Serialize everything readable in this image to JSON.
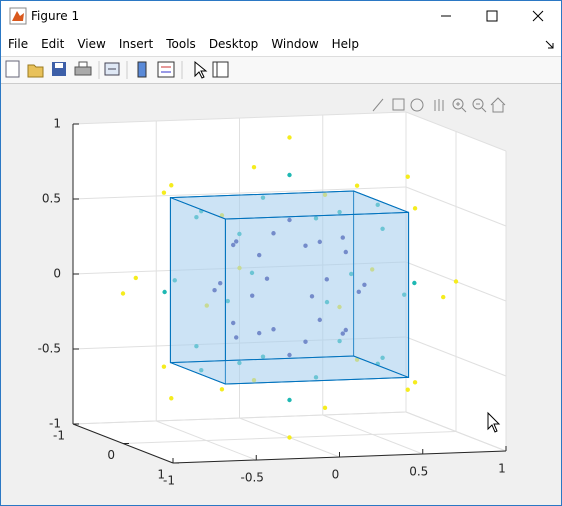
{
  "window": {
    "title": "Figure 1"
  },
  "menu": [
    "File",
    "Edit",
    "View",
    "Insert",
    "Tools",
    "Desktop",
    "Window",
    "Help"
  ],
  "chart_data": {
    "type": "scatter3",
    "xlim": [
      -1,
      1
    ],
    "ylim": [
      -1,
      1
    ],
    "zlim": [
      -1,
      1
    ],
    "xticks": [
      -1,
      -0.5,
      0,
      0.5,
      1
    ],
    "yticks": [
      -1,
      0,
      1
    ],
    "zticks": [
      -1,
      -0.5,
      0,
      0.5,
      1
    ],
    "grid": true,
    "series": [
      {
        "color": "#f5ec1e",
        "x": [
          1,
          -1,
          0,
          0,
          0,
          0,
          0.71,
          0.71,
          -0.71,
          -0.71,
          0.71,
          0.71,
          -0.71,
          -0.71,
          0,
          0,
          0,
          0,
          0.58,
          0.58,
          0.58,
          0.58,
          -0.58,
          -0.58,
          -0.58,
          -0.58
        ],
        "y": [
          0,
          0,
          1,
          -1,
          0,
          0,
          0.71,
          -0.71,
          0.71,
          -0.71,
          0,
          0,
          0,
          0,
          0.71,
          0.71,
          -0.71,
          -0.71,
          0.58,
          0.58,
          -0.58,
          -0.58,
          0.58,
          0.58,
          -0.58,
          -0.58
        ],
        "z": [
          0,
          0,
          0,
          0,
          1,
          -1,
          0,
          0,
          0,
          0,
          0.71,
          -0.71,
          0.71,
          -0.71,
          0.71,
          -0.71,
          0.71,
          -0.71,
          0.58,
          -0.58,
          0.58,
          -0.58,
          0.58,
          -0.58,
          0.58,
          -0.58
        ]
      },
      {
        "color": "#1fb8b3",
        "x": [
          0.75,
          -0.75,
          0,
          0,
          0,
          0,
          0.53,
          0.53,
          -0.53,
          -0.53,
          0.53,
          0.53,
          -0.53,
          -0.53,
          0,
          0,
          0,
          0,
          0.43,
          0.43,
          0.43,
          0.43,
          -0.43,
          -0.43,
          -0.43,
          -0.43
        ],
        "y": [
          0,
          0,
          0.75,
          -0.75,
          0,
          0,
          0.53,
          -0.53,
          0.53,
          -0.53,
          0,
          0,
          0,
          0,
          0.53,
          0.53,
          -0.53,
          -0.53,
          0.43,
          0.43,
          -0.43,
          -0.43,
          0.43,
          0.43,
          -0.43,
          -0.43
        ],
        "z": [
          0,
          0,
          0,
          0,
          0.75,
          -0.75,
          0,
          0,
          0,
          0,
          0.53,
          -0.53,
          0.53,
          -0.53,
          0.53,
          -0.53,
          0.53,
          -0.53,
          0.43,
          -0.43,
          0.43,
          -0.43,
          0.43,
          -0.43,
          0.43,
          -0.43
        ]
      },
      {
        "color": "#30309a",
        "x": [
          0.45,
          -0.45,
          0,
          0,
          0,
          0,
          0.32,
          0.32,
          -0.32,
          -0.32,
          0.32,
          0.32,
          -0.32,
          -0.32,
          0,
          0,
          0,
          0,
          0.26,
          0.26,
          0.26,
          0.26,
          -0.26,
          -0.26,
          -0.26,
          -0.26
        ],
        "y": [
          0,
          0,
          0.45,
          -0.45,
          0,
          0,
          0.32,
          -0.32,
          0.32,
          -0.32,
          0,
          0,
          0,
          0,
          0.32,
          0.32,
          -0.32,
          -0.32,
          0.26,
          0.26,
          -0.26,
          -0.26,
          0.26,
          0.26,
          -0.26,
          -0.26
        ],
        "z": [
          0,
          0,
          0,
          0,
          0.45,
          -0.45,
          0,
          0,
          0,
          0,
          0.32,
          -0.32,
          0.32,
          -0.32,
          0.32,
          -0.32,
          0.32,
          -0.32,
          0.26,
          -0.26,
          0.26,
          -0.26,
          0.26,
          -0.26,
          0.26,
          -0.26
        ]
      }
    ],
    "cube": {
      "xlim": [
        -0.55,
        0.55
      ],
      "ylim": [
        -0.55,
        0.55
      ],
      "zlim": [
        -0.55,
        0.55
      ],
      "edge_color": "#0072bd",
      "face_color": "#a6cfee"
    }
  }
}
